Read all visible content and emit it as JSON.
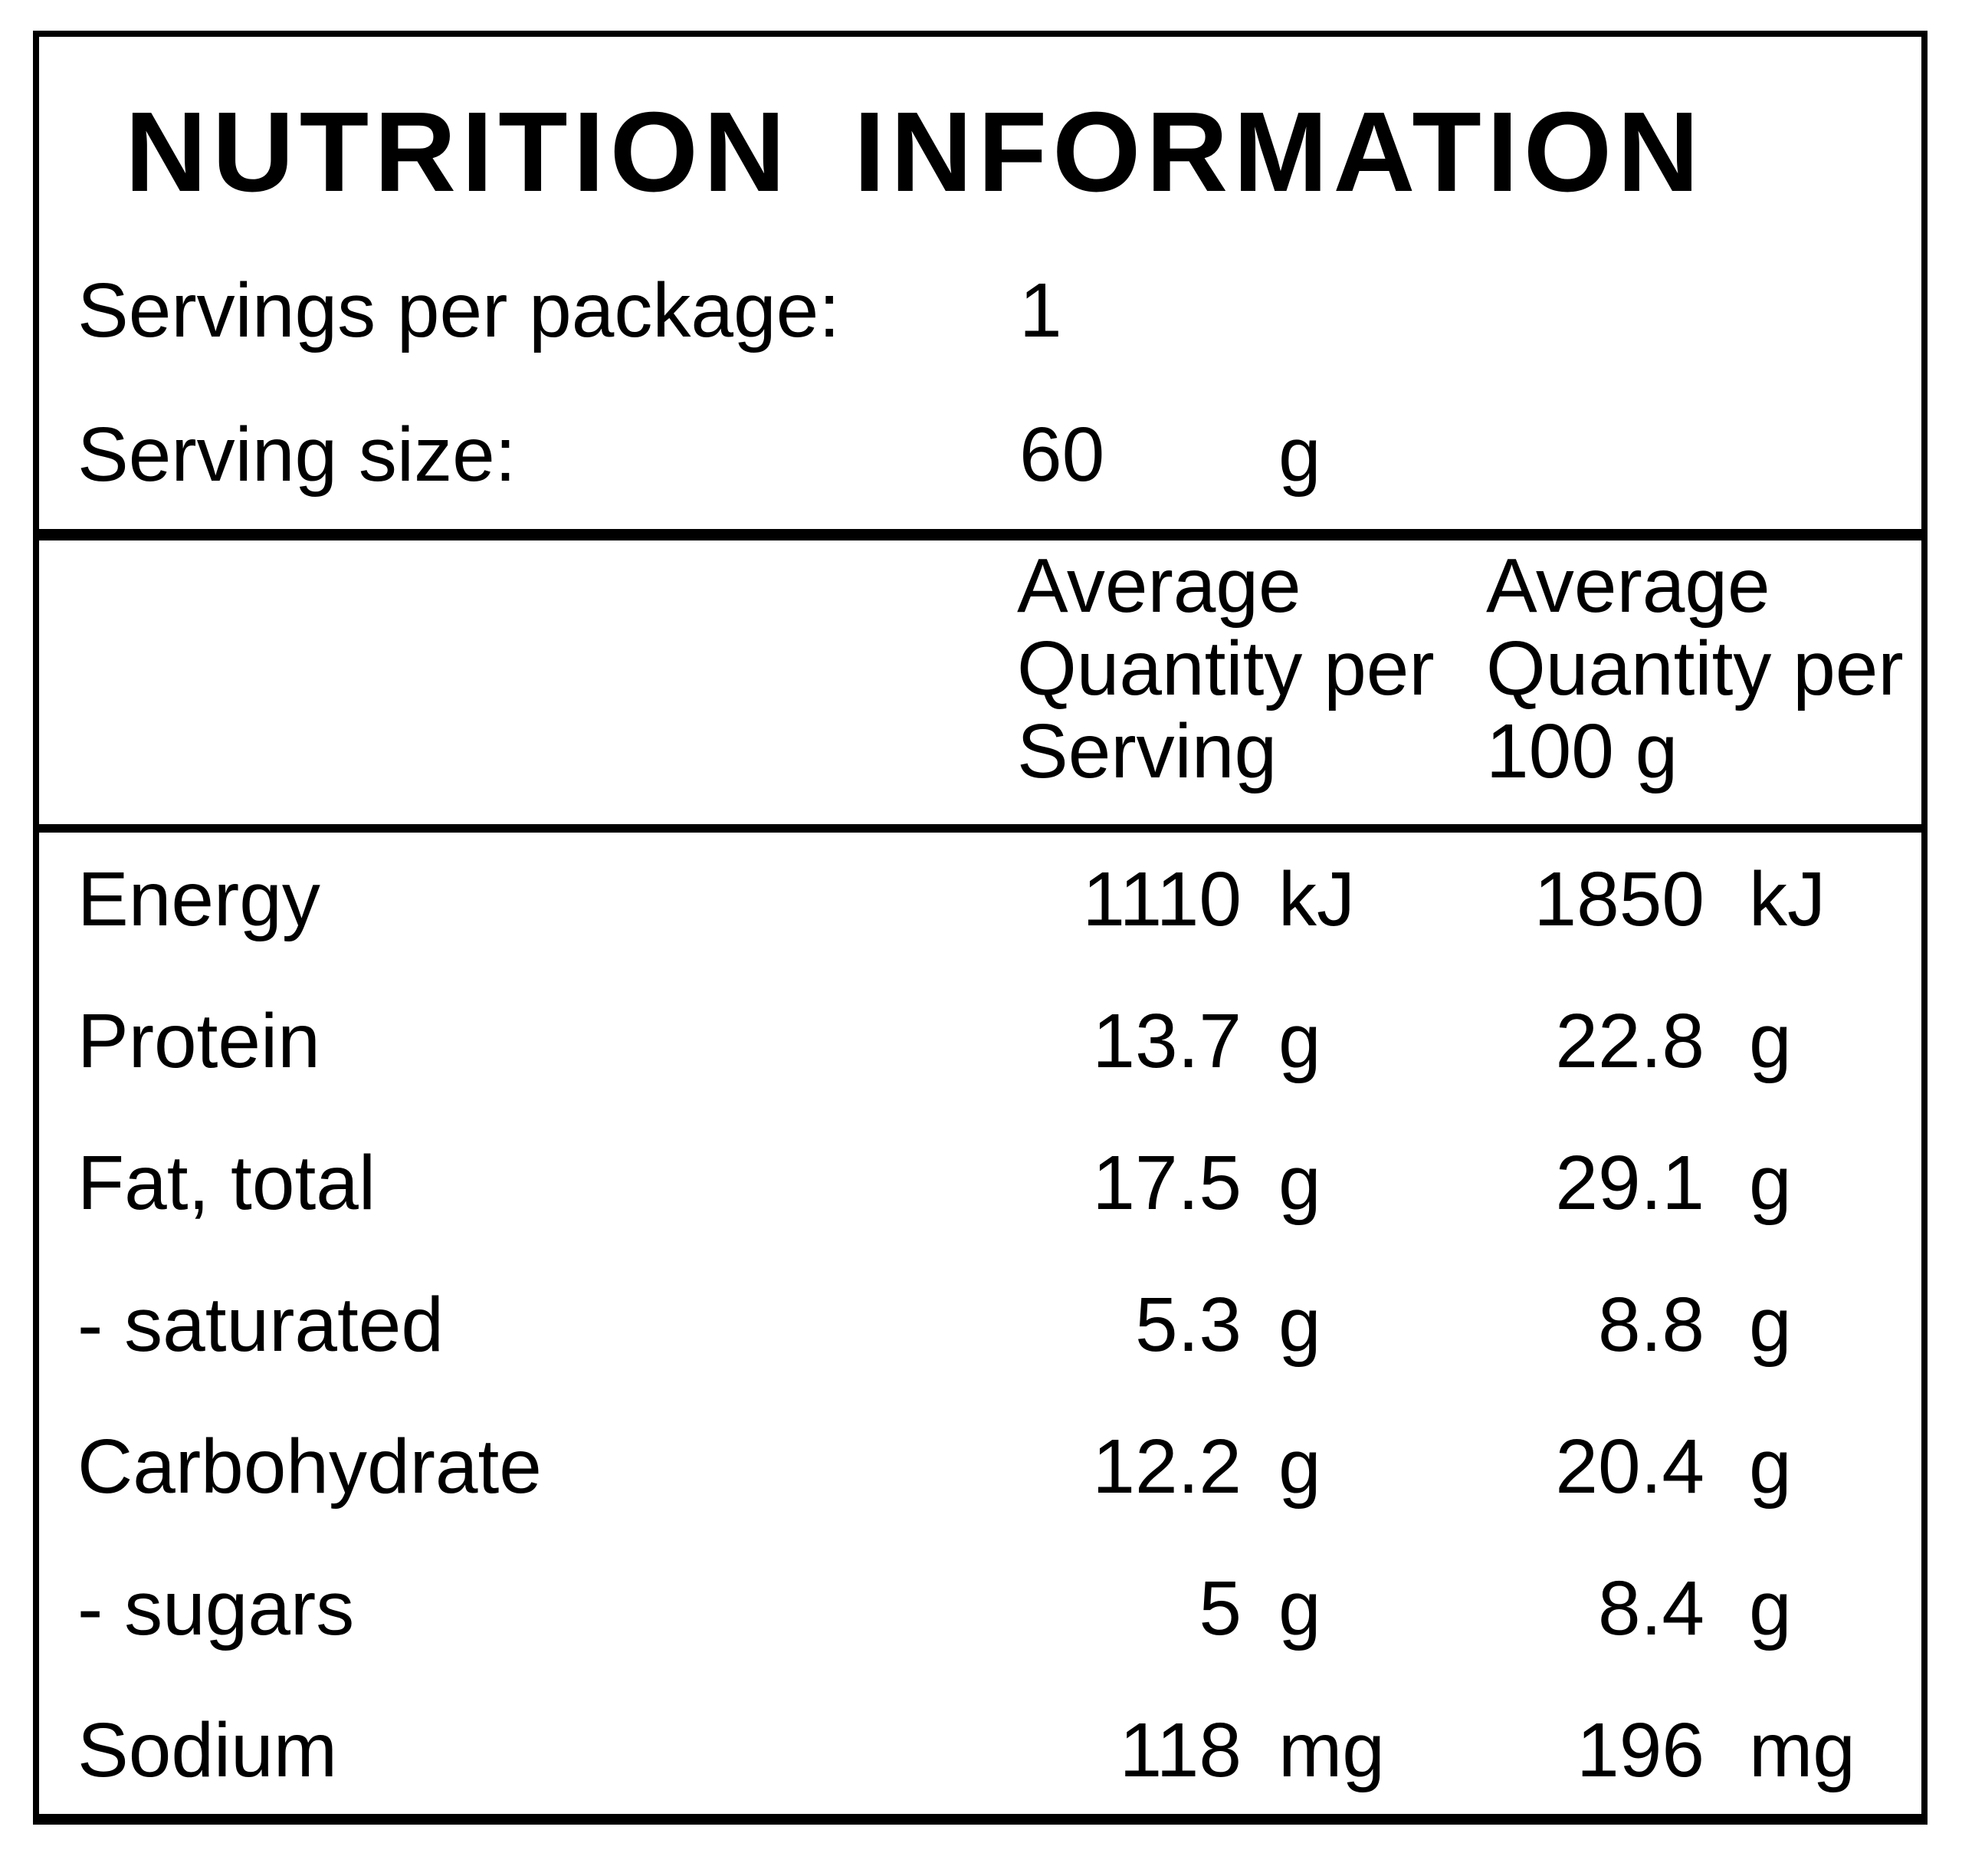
{
  "title": "NUTRITION INFORMATION",
  "serving_info": {
    "rows": [
      {
        "label": "Servings per package:",
        "value": "1",
        "unit": ""
      },
      {
        "label": "Serving size:",
        "value": "60",
        "unit": "g"
      }
    ]
  },
  "table": {
    "column_headers": [
      "Average\nQuantity per\nServing",
      "Average\nQuantity per\n100 g"
    ],
    "rows": [
      {
        "nutrient": "Energy",
        "per_serving": "1110",
        "per_serving_unit": "kJ",
        "per_100g": "1850",
        "per_100g_unit": "kJ"
      },
      {
        "nutrient": "Protein",
        "per_serving": "13.7",
        "per_serving_unit": "g",
        "per_100g": "22.8",
        "per_100g_unit": "g"
      },
      {
        "nutrient": "Fat, total",
        "per_serving": "17.5",
        "per_serving_unit": "g",
        "per_100g": "29.1",
        "per_100g_unit": "g"
      },
      {
        "nutrient": "- saturated",
        "per_serving": "5.3",
        "per_serving_unit": "g",
        "per_100g": "8.8",
        "per_100g_unit": "g"
      },
      {
        "nutrient": "Carbohydrate",
        "per_serving": "12.2",
        "per_serving_unit": "g",
        "per_100g": "20.4",
        "per_100g_unit": "g"
      },
      {
        "nutrient": "- sugars",
        "per_serving": "5",
        "per_serving_unit": "g",
        "per_100g": "8.4",
        "per_100g_unit": "g"
      },
      {
        "nutrient": "Sodium",
        "per_serving": "118",
        "per_serving_unit": "mg",
        "per_100g": "196",
        "per_100g_unit": "mg"
      }
    ]
  },
  "colors": {
    "text": "#000000",
    "border": "#000000",
    "background": "#ffffff"
  }
}
